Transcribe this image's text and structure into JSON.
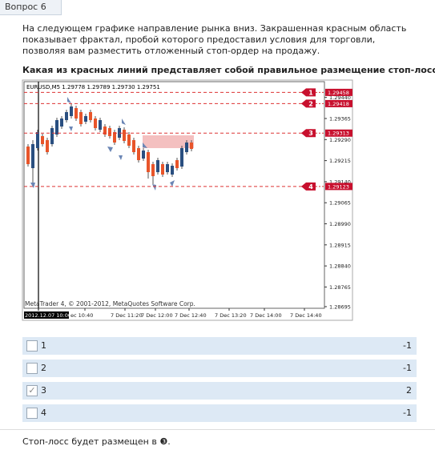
{
  "header": {
    "title": "Вопрос 6"
  },
  "question": {
    "text": "На следующем графике направление рынка вниз. Закрашенная красным область показывает фрактал, пробой которого предоставил условия для торговли, позволяя вам разместить отложенный стоп-ордер на продажу.",
    "prompt": "Какая из красных линий представляет собой правильное размещение стоп-лосса?"
  },
  "chart": {
    "symbol": "EURUSD,M5  1.29778 1.29789 1.29730 1.29751",
    "copyright": "MetaTrader 4, © 2001-2012, MetaQuotes Software Corp.",
    "price_ticks": [
      {
        "value": 1.2944,
        "label": "1.29440"
      },
      1.29365,
      {
        "value": 1.2929,
        "label": "1.29290"
      },
      1.29215,
      {
        "value": 1.2914,
        "label": "1.29140"
      },
      1.29065,
      {
        "value": 1.2899,
        "label": "1.28990"
      },
      1.28915,
      {
        "value": 1.2884,
        "label": "1.28840"
      },
      1.28765,
      1.28695
    ],
    "levels": [
      {
        "number": 1,
        "price": 1.29458
      },
      {
        "number": 2,
        "price": 1.29418
      },
      {
        "number": 3,
        "price": 1.29313
      },
      {
        "number": 4,
        "price": 1.29123
      }
    ],
    "time_labels": [
      "2012.12.07 10:00",
      "ec 10:40",
      "7 Dec 11:20",
      "7 Dec 12:00",
      "7 Dec 12:40",
      "7 Dec 13:20",
      "7 Dec 14:00",
      "7 Dec 14:40"
    ]
  },
  "options": [
    {
      "label": "1",
      "score": -1,
      "checked": false
    },
    {
      "label": "2",
      "score": -1,
      "checked": false
    },
    {
      "label": "3",
      "score": 2,
      "checked": true
    },
    {
      "label": "4",
      "score": -1,
      "checked": false
    }
  ],
  "feedback": "Стоп-лосс будет размещен в ❸."
}
